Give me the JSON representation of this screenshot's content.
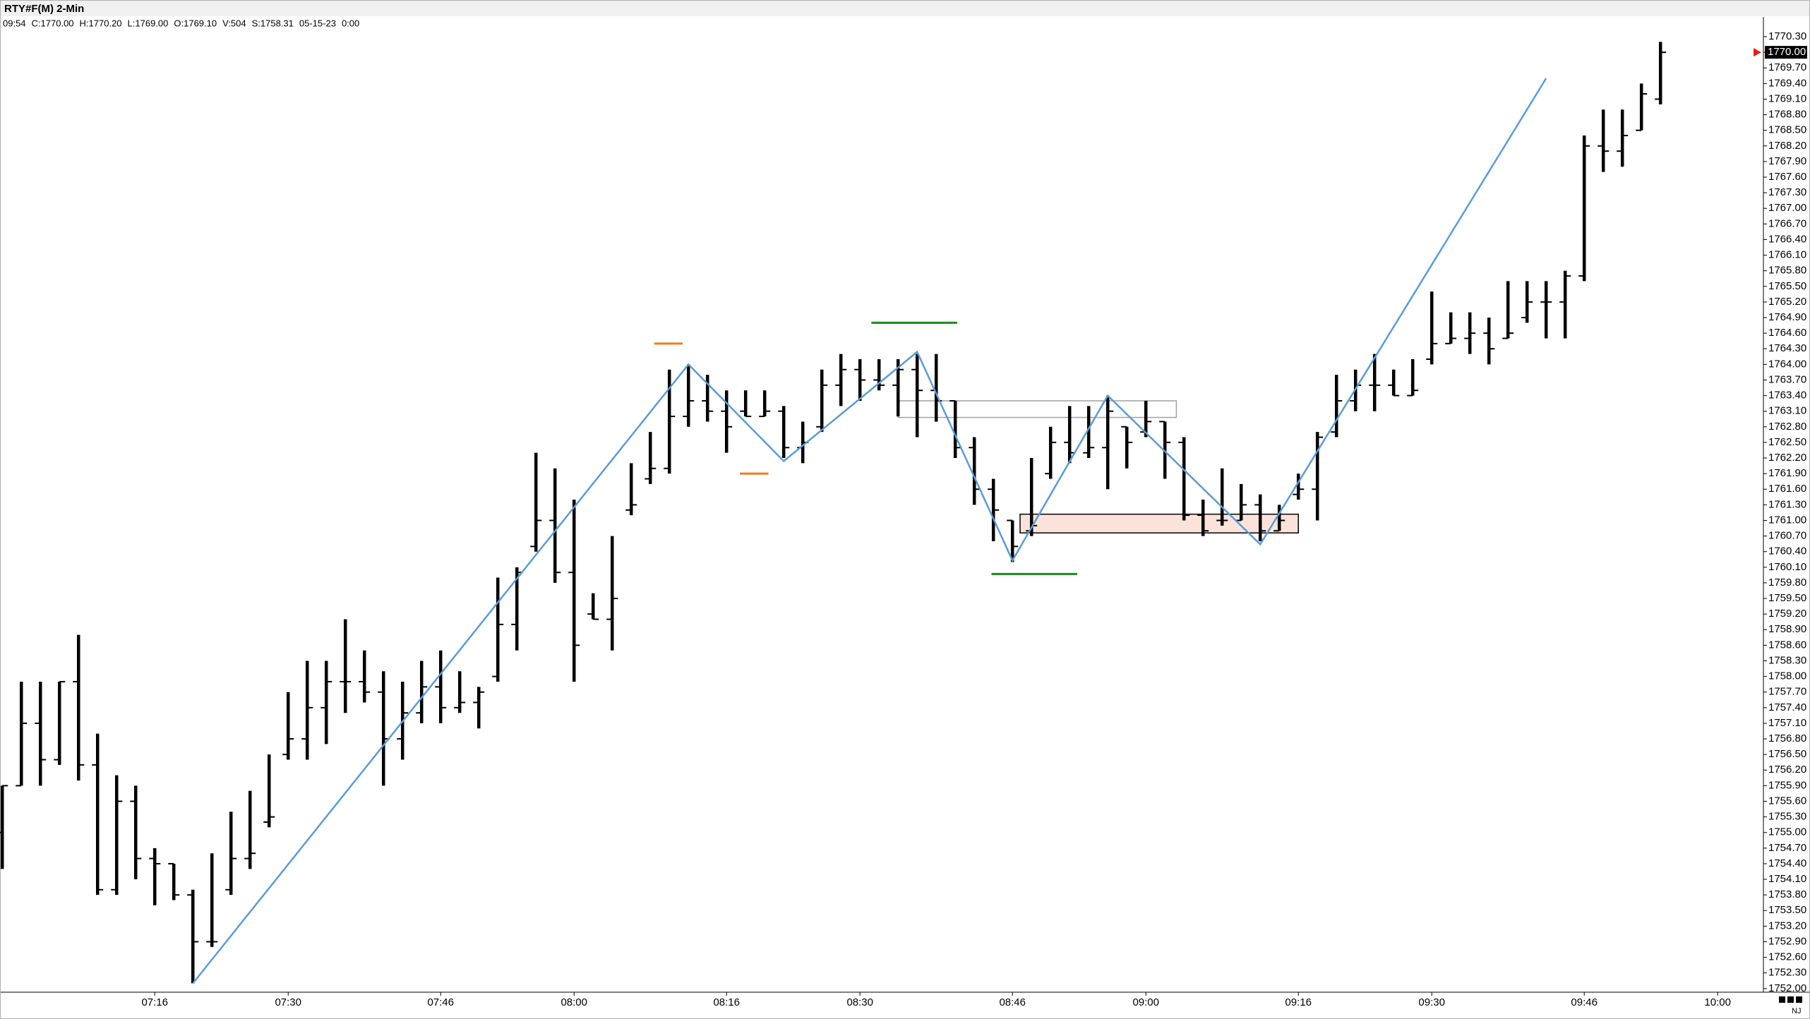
{
  "chart_data": {
    "type": "ohlc",
    "title": "RTY#F(M) 2-Min",
    "info": [
      "09:54",
      "C:1770.00",
      "H:1770.20",
      "L:1769.00",
      "O:1769.10",
      "V:504",
      "S:1758.31",
      "05-15-23",
      "0:00"
    ],
    "footer": "NJ",
    "color": "#000000",
    "open": [
      1755.0,
      1755.9,
      1757.1,
      1756.4,
      1757.9,
      1756.3,
      1753.9,
      1755.6,
      1754.5,
      1754.4,
      1753.8,
      1752.9,
      1753.9,
      1754.5,
      1755.2,
      1756.5,
      1756.8,
      1757.4,
      1757.9,
      1757.9,
      1757.7,
      1756.8,
      1757.3,
      1757.8,
      1757.4,
      1757.5,
      1758.0,
      1759.0,
      1760.5,
      1761.0,
      1760.0,
      1759.2,
      1759.1,
      1761.2,
      1761.8,
      1762.0,
      1763.0,
      1763.3,
      1763.1,
      1763.1,
      1763.0,
      1763.1,
      1762.4,
      1762.8,
      1763.6,
      1763.9,
      1763.7,
      1763.6,
      1763.9,
      1763.5,
      1763.3,
      1762.4,
      1761.6,
      1761.0,
      1760.8,
      1761.9,
      1762.5,
      1762.3,
      1762.4,
      1762.8,
      1762.7,
      1762.9,
      1762.5,
      1761.1,
      1761.0,
      1761.0,
      1761.3,
      1760.8,
      1761.5,
      1761.6,
      1762.7,
      1763.3,
      1763.6,
      1763.6,
      1763.4,
      1764.1,
      1764.4,
      1764.5,
      1764.6,
      1764.5,
      1764.9,
      1765.2,
      1765.2,
      1765.7,
      1768.2,
      1768.1,
      1768.5,
      1769.1
    ],
    "high": [
      1755.9,
      1757.9,
      1757.9,
      1757.9,
      1758.8,
      1756.9,
      1756.1,
      1755.9,
      1754.7,
      1754.4,
      1753.9,
      1754.6,
      1755.4,
      1755.8,
      1756.5,
      1757.7,
      1758.3,
      1758.3,
      1759.1,
      1758.5,
      1758.1,
      1757.9,
      1758.3,
      1758.5,
      1758.1,
      1757.8,
      1759.9,
      1760.1,
      1762.3,
      1762.0,
      1761.4,
      1759.6,
      1760.7,
      1762.1,
      1762.7,
      1763.9,
      1764.0,
      1763.8,
      1763.5,
      1763.5,
      1763.5,
      1763.2,
      1762.9,
      1763.9,
      1764.2,
      1764.1,
      1764.1,
      1764.1,
      1764.2,
      1764.2,
      1763.3,
      1762.6,
      1761.8,
      1761.0,
      1762.2,
      1762.8,
      1763.2,
      1763.2,
      1763.4,
      1762.8,
      1763.3,
      1762.9,
      1762.6,
      1761.4,
      1762.0,
      1761.7,
      1761.5,
      1761.3,
      1761.9,
      1762.7,
      1763.8,
      1763.9,
      1764.2,
      1763.9,
      1764.1,
      1765.4,
      1765.0,
      1765.0,
      1764.9,
      1765.6,
      1765.6,
      1765.6,
      1765.8,
      1768.4,
      1768.9,
      1768.9,
      1769.4,
      1770.2
    ],
    "low": [
      1754.3,
      1755.9,
      1755.9,
      1756.3,
      1756.0,
      1753.8,
      1753.8,
      1754.1,
      1753.6,
      1753.7,
      1752.1,
      1752.8,
      1753.8,
      1754.3,
      1755.1,
      1756.4,
      1756.4,
      1756.7,
      1757.3,
      1757.5,
      1755.9,
      1756.4,
      1757.1,
      1757.1,
      1757.3,
      1757.0,
      1757.9,
      1758.5,
      1760.4,
      1759.8,
      1757.9,
      1759.1,
      1758.5,
      1761.1,
      1761.7,
      1761.9,
      1762.8,
      1762.9,
      1762.3,
      1763.0,
      1763.0,
      1762.2,
      1762.1,
      1762.7,
      1763.2,
      1763.3,
      1763.5,
      1763.0,
      1762.6,
      1762.9,
      1762.2,
      1761.3,
      1760.6,
      1760.2,
      1760.7,
      1761.8,
      1762.1,
      1762.2,
      1761.6,
      1762.0,
      1762.6,
      1761.8,
      1761.0,
      1760.7,
      1760.9,
      1761.0,
      1760.6,
      1760.8,
      1761.4,
      1761.0,
      1762.6,
      1763.1,
      1763.1,
      1763.4,
      1763.4,
      1764.0,
      1764.4,
      1764.2,
      1764.0,
      1764.5,
      1764.8,
      1764.5,
      1764.5,
      1765.6,
      1767.7,
      1767.8,
      1768.5,
      1769.0
    ],
    "close": [
      1755.9,
      1757.1,
      1756.4,
      1757.9,
      1756.3,
      1753.9,
      1755.6,
      1754.5,
      1754.4,
      1753.8,
      1752.9,
      1752.9,
      1754.5,
      1754.6,
      1755.3,
      1756.8,
      1757.4,
      1757.9,
      1757.9,
      1757.7,
      1756.8,
      1757.3,
      1757.8,
      1757.4,
      1757.5,
      1757.7,
      1759.0,
      1760.0,
      1761.0,
      1760.0,
      1758.6,
      1759.1,
      1759.5,
      1761.3,
      1762.0,
      1763.0,
      1763.3,
      1763.1,
      1762.8,
      1763.0,
      1763.1,
      1762.4,
      1762.5,
      1763.6,
      1763.9,
      1763.7,
      1763.6,
      1763.9,
      1763.5,
      1763.3,
      1762.4,
      1761.6,
      1761.2,
      1760.5,
      1760.9,
      1762.5,
      1762.3,
      1762.4,
      1763.1,
      1762.5,
      1762.9,
      1762.5,
      1761.1,
      1760.8,
      1761.0,
      1761.3,
      1760.8,
      1761.0,
      1761.6,
      1762.6,
      1763.3,
      1763.6,
      1763.6,
      1763.4,
      1763.5,
      1764.4,
      1764.5,
      1764.6,
      1764.3,
      1764.6,
      1765.2,
      1765.2,
      1765.7,
      1768.2,
      1768.1,
      1768.4,
      1769.2,
      1770.0
    ],
    "xlim": [
      -0.12,
      92.4
    ],
    "xticks": [
      {
        "value": 8,
        "label": "07:16"
      },
      {
        "value": 15,
        "label": "07:30"
      },
      {
        "value": 23,
        "label": "07:46"
      },
      {
        "value": 30,
        "label": "08:00"
      },
      {
        "value": 38,
        "label": "08:16"
      },
      {
        "value": 45,
        "label": "08:30"
      },
      {
        "value": 53,
        "label": "08:46"
      },
      {
        "value": 60,
        "label": "09:00"
      },
      {
        "value": 68,
        "label": "09:16"
      },
      {
        "value": 75,
        "label": "09:30"
      },
      {
        "value": 83,
        "label": "09:46"
      },
      {
        "value": 90,
        "label": "10:00"
      }
    ],
    "ylim": [
      1751.93,
      1770.68
    ],
    "yticks": [
      {
        "value": 1770.3,
        "label": "1770.30"
      },
      {
        "value": 1770.0,
        "label": "1770.00"
      },
      {
        "value": 1769.7,
        "label": "1769.70"
      },
      {
        "value": 1769.4,
        "label": "1769.40"
      },
      {
        "value": 1769.1,
        "label": "1769.10"
      },
      {
        "value": 1768.8,
        "label": "1768.80"
      },
      {
        "value": 1768.5,
        "label": "1768.50"
      },
      {
        "value": 1768.2,
        "label": "1768.20"
      },
      {
        "value": 1767.9,
        "label": "1767.90"
      },
      {
        "value": 1767.6,
        "label": "1767.60"
      },
      {
        "value": 1767.3,
        "label": "1767.30"
      },
      {
        "value": 1767.0,
        "label": "1767.00"
      },
      {
        "value": 1766.7,
        "label": "1766.70"
      },
      {
        "value": 1766.4,
        "label": "1766.40"
      },
      {
        "value": 1766.1,
        "label": "1766.10"
      },
      {
        "value": 1765.8,
        "label": "1765.80"
      },
      {
        "value": 1765.5,
        "label": "1765.50"
      },
      {
        "value": 1765.2,
        "label": "1765.20"
      },
      {
        "value": 1764.9,
        "label": "1764.90"
      },
      {
        "value": 1764.6,
        "label": "1764.60"
      },
      {
        "value": 1764.3,
        "label": "1764.30"
      },
      {
        "value": 1764.0,
        "label": "1764.00"
      },
      {
        "value": 1763.7,
        "label": "1763.70"
      },
      {
        "value": 1763.4,
        "label": "1763.40"
      },
      {
        "value": 1763.1,
        "label": "1763.10"
      },
      {
        "value": 1762.8,
        "label": "1762.80"
      },
      {
        "value": 1762.5,
        "label": "1762.50"
      },
      {
        "value": 1762.2,
        "label": "1762.20"
      },
      {
        "value": 1761.9,
        "label": "1761.90"
      },
      {
        "value": 1761.6,
        "label": "1761.60"
      },
      {
        "value": 1761.3,
        "label": "1761.30"
      },
      {
        "value": 1761.0,
        "label": "1761.00"
      },
      {
        "value": 1760.7,
        "label": "1760.70"
      },
      {
        "value": 1760.4,
        "label": "1760.40"
      },
      {
        "value": 1760.1,
        "label": "1760.10"
      },
      {
        "value": 1759.8,
        "label": "1759.80"
      },
      {
        "value": 1759.5,
        "label": "1759.50"
      },
      {
        "value": 1759.2,
        "label": "1759.20"
      },
      {
        "value": 1758.9,
        "label": "1758.90"
      },
      {
        "value": 1758.6,
        "label": "1758.60"
      },
      {
        "value": 1758.3,
        "label": "1758.30"
      },
      {
        "value": 1758.0,
        "label": "1758.00"
      },
      {
        "value": 1757.7,
        "label": "1757.70"
      },
      {
        "value": 1757.4,
        "label": "1757.40"
      },
      {
        "value": 1757.1,
        "label": "1757.10"
      },
      {
        "value": 1756.8,
        "label": "1756.80"
      },
      {
        "value": 1756.5,
        "label": "1756.50"
      },
      {
        "value": 1756.2,
        "label": "1756.20"
      },
      {
        "value": 1755.9,
        "label": "1755.90"
      },
      {
        "value": 1755.6,
        "label": "1755.60"
      },
      {
        "value": 1755.3,
        "label": "1755.30"
      },
      {
        "value": 1755.0,
        "label": "1755.00"
      },
      {
        "value": 1754.7,
        "label": "1754.70"
      },
      {
        "value": 1754.4,
        "label": "1754.40"
      },
      {
        "value": 1754.1,
        "label": "1754.10"
      },
      {
        "value": 1753.8,
        "label": "1753.80"
      },
      {
        "value": 1753.5,
        "label": "1753.50"
      },
      {
        "value": 1753.2,
        "label": "1753.20"
      },
      {
        "value": 1752.9,
        "label": "1752.90"
      },
      {
        "value": 1752.6,
        "label": "1752.60"
      },
      {
        "value": 1752.3,
        "label": "1752.30"
      },
      {
        "value": 1752.0,
        "label": "1752.00"
      }
    ],
    "last_price": {
      "value": 1770.0,
      "label": "1770.00",
      "color": "#e02020"
    },
    "zigzag": {
      "color": "#5b9bd5",
      "x": [
        10,
        36,
        41,
        48,
        53,
        58,
        66,
        81
      ],
      "y": [
        1752.1,
        1764.0,
        1762.14,
        1764.24,
        1760.23,
        1763.4,
        1760.54,
        1769.5
      ]
    },
    "levels": [
      {
        "color": "#f07c1c",
        "x": [
          34.2,
          35.7
        ],
        "y": 1764.4
      },
      {
        "color": "#f07c1c",
        "x": [
          38.7,
          40.2
        ],
        "y": 1761.9
      },
      {
        "color": "#1a8a1a",
        "x": [
          45.6,
          50.1
        ],
        "y": 1764.8
      },
      {
        "color": "#1a8a1a",
        "x": [
          51.9,
          56.4
        ],
        "y": 1759.97
      }
    ],
    "boxes": [
      {
        "stroke": "#a0a0a0",
        "fill": "#ffffff",
        "x": [
          47,
          61.6
        ],
        "y": [
          1763.3,
          1762.98
        ]
      },
      {
        "stroke": "#000000",
        "fill": "#fbe3dc",
        "x": [
          53.4,
          68.0
        ],
        "y": [
          1761.12,
          1760.76
        ]
      }
    ]
  }
}
